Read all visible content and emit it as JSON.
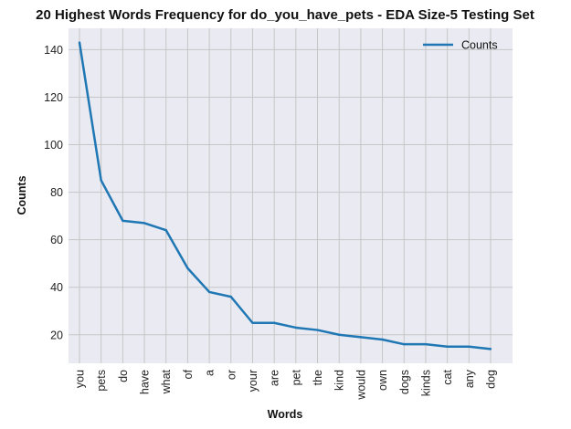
{
  "chart_data": {
    "type": "line",
    "title": "20 Highest Words Frequency for do_you_have_pets - EDA Size-5 Testing Set",
    "xlabel": "Words",
    "ylabel": "Counts",
    "categories": [
      "you",
      "pets",
      "do",
      "have",
      "what",
      "of",
      "a",
      "or",
      "your",
      "are",
      "pet",
      "the",
      "kind",
      "would",
      "own",
      "dogs",
      "kinds",
      "cat",
      "any",
      "dog"
    ],
    "series": [
      {
        "name": "Counts",
        "values": [
          143,
          85,
          68,
          67,
          64,
          48,
          38,
          36,
          25,
          25,
          23,
          22,
          20,
          19,
          18,
          16,
          16,
          15,
          15,
          14
        ]
      }
    ],
    "ylim": [
      8,
      149
    ],
    "yticks": [
      20,
      40,
      60,
      80,
      100,
      120,
      140
    ],
    "grid": true,
    "legend_position": "top-right",
    "colors": {
      "line": "#1f77b4",
      "background": "#eaeaf2",
      "grid": "#c6c6c6"
    }
  }
}
